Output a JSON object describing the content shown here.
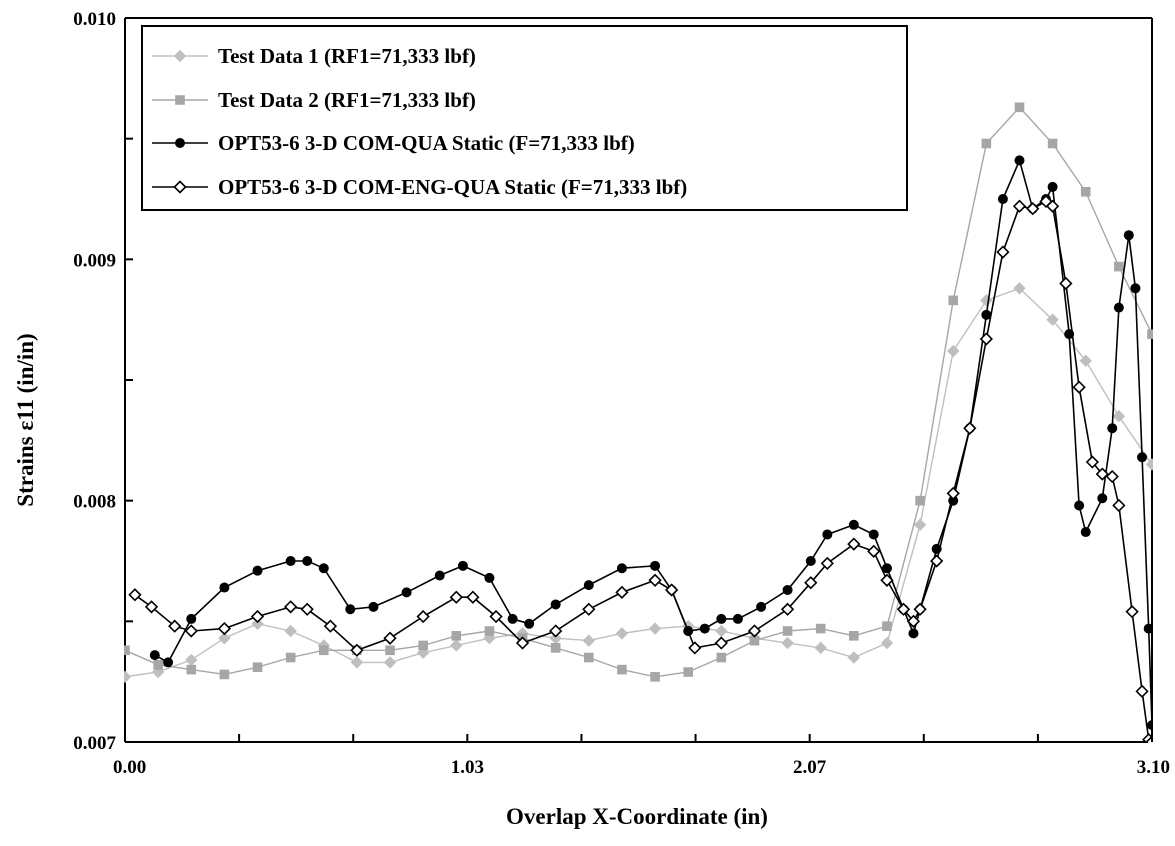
{
  "chart_data": {
    "type": "line",
    "title": "",
    "xlabel": "Overlap X-Coordinate (in)",
    "ylabel": "Strains  ε11 (in/in)",
    "xlim": [
      0.0,
      3.1
    ],
    "ylim": [
      0.007,
      0.01
    ],
    "x_tick_labels": [
      "0.00",
      "1.03",
      "2.07",
      "3.10"
    ],
    "x_tick_values": [
      0.0,
      1.0333,
      2.0667,
      3.1
    ],
    "x_minor_tick_values": [
      0.3444,
      0.6889,
      1.3778,
      1.7222,
      2.4111,
      2.7556
    ],
    "y_tick_labels": [
      "0.007",
      "0.008",
      "0.009",
      "0.010"
    ],
    "y_tick_values": [
      0.007,
      0.008,
      0.009,
      0.01
    ],
    "y_minor_tick_values": [
      0.0075,
      0.0085,
      0.0095
    ],
    "grid": false,
    "legend_position": "top-left",
    "series": [
      {
        "name": "Test Data 1 (RF1=71,333 lbf)",
        "color": "#bfbfbf",
        "marker": "diamond-filled",
        "x": [
          0.0,
          0.1,
          0.2,
          0.3,
          0.4,
          0.5,
          0.6,
          0.7,
          0.8,
          0.9,
          1.0,
          1.1,
          1.2,
          1.3,
          1.4,
          1.5,
          1.6,
          1.7,
          1.8,
          1.9,
          2.0,
          2.1,
          2.2,
          2.3,
          2.4,
          2.5,
          2.6,
          2.7,
          2.8,
          2.9,
          3.0,
          3.1
        ],
        "y": [
          0.00727,
          0.00729,
          0.00734,
          0.00743,
          0.00749,
          0.00746,
          0.0074,
          0.00733,
          0.00733,
          0.00737,
          0.0074,
          0.00743,
          0.00745,
          0.00743,
          0.00742,
          0.00745,
          0.00747,
          0.00748,
          0.00746,
          0.00743,
          0.00741,
          0.00739,
          0.00735,
          0.00741,
          0.0079,
          0.00862,
          0.00883,
          0.00888,
          0.00875,
          0.00858,
          0.00835,
          0.00815
        ]
      },
      {
        "name": "Test Data 2 (RF1=71,333 lbf)",
        "color": "#a6a6a6",
        "marker": "square-filled",
        "x": [
          0.0,
          0.1,
          0.2,
          0.3,
          0.4,
          0.5,
          0.6,
          0.7,
          0.8,
          0.9,
          1.0,
          1.1,
          1.2,
          1.3,
          1.4,
          1.5,
          1.6,
          1.7,
          1.8,
          1.9,
          2.0,
          2.1,
          2.2,
          2.3,
          2.4,
          2.5,
          2.6,
          2.7,
          2.8,
          2.9,
          3.0,
          3.1
        ],
        "y": [
          0.00738,
          0.00732,
          0.0073,
          0.00728,
          0.00731,
          0.00735,
          0.00738,
          0.00738,
          0.00738,
          0.0074,
          0.00744,
          0.00746,
          0.00743,
          0.00739,
          0.00735,
          0.0073,
          0.00727,
          0.00729,
          0.00735,
          0.00742,
          0.00746,
          0.00747,
          0.00744,
          0.00748,
          0.008,
          0.00883,
          0.00948,
          0.00963,
          0.00948,
          0.00928,
          0.00897,
          0.00869
        ]
      },
      {
        "name": "OPT53-6 3-D COM-QUA Static (F=71,333 lbf)",
        "color": "#000000",
        "marker": "circle-filled",
        "x": [
          0.09,
          0.13,
          0.2,
          0.3,
          0.4,
          0.5,
          0.55,
          0.6,
          0.68,
          0.75,
          0.85,
          0.95,
          1.02,
          1.1,
          1.17,
          1.22,
          1.3,
          1.4,
          1.5,
          1.6,
          1.65,
          1.7,
          1.75,
          1.8,
          1.85,
          1.92,
          2.0,
          2.07,
          2.12,
          2.2,
          2.26,
          2.3,
          2.35,
          2.38,
          2.4,
          2.45,
          2.5,
          2.55,
          2.6,
          2.65,
          2.7,
          2.74,
          2.78,
          2.8,
          2.85,
          2.88,
          2.9,
          2.95,
          2.98,
          3.0,
          3.03,
          3.05,
          3.07,
          3.09,
          3.1
        ],
        "y": [
          0.00736,
          0.00733,
          0.00751,
          0.00764,
          0.00771,
          0.00775,
          0.00775,
          0.00772,
          0.00755,
          0.00756,
          0.00762,
          0.00769,
          0.00773,
          0.00768,
          0.00751,
          0.00749,
          0.00757,
          0.00765,
          0.00772,
          0.00773,
          0.00763,
          0.00746,
          0.00747,
          0.00751,
          0.00751,
          0.00756,
          0.00763,
          0.00775,
          0.00786,
          0.0079,
          0.00786,
          0.00772,
          0.00755,
          0.00745,
          0.00755,
          0.0078,
          0.008,
          0.0083,
          0.00877,
          0.00925,
          0.00941,
          0.00921,
          0.00925,
          0.0093,
          0.00869,
          0.00798,
          0.00787,
          0.00801,
          0.0083,
          0.0088,
          0.0091,
          0.00888,
          0.00818,
          0.00747,
          0.00707
        ]
      },
      {
        "name": "OPT53-6 3-D COM-ENG-QUA Static (F=71,333 lbf)",
        "color": "#000000",
        "marker": "diamond-open",
        "x": [
          0.03,
          0.08,
          0.15,
          0.2,
          0.3,
          0.4,
          0.5,
          0.55,
          0.62,
          0.7,
          0.8,
          0.9,
          1.0,
          1.05,
          1.12,
          1.2,
          1.3,
          1.4,
          1.5,
          1.6,
          1.65,
          1.72,
          1.8,
          1.9,
          2.0,
          2.07,
          2.12,
          2.2,
          2.26,
          2.3,
          2.35,
          2.38,
          2.4,
          2.45,
          2.5,
          2.55,
          2.6,
          2.65,
          2.7,
          2.74,
          2.78,
          2.8,
          2.84,
          2.88,
          2.92,
          2.95,
          2.98,
          3.0,
          3.04,
          3.07,
          3.09,
          3.1
        ],
        "y": [
          0.00761,
          0.00756,
          0.00748,
          0.00746,
          0.00747,
          0.00752,
          0.00756,
          0.00755,
          0.00748,
          0.00738,
          0.00743,
          0.00752,
          0.0076,
          0.0076,
          0.00752,
          0.00741,
          0.00746,
          0.00755,
          0.00762,
          0.00767,
          0.00763,
          0.00739,
          0.00741,
          0.00746,
          0.00755,
          0.00766,
          0.00774,
          0.00782,
          0.00779,
          0.00767,
          0.00755,
          0.0075,
          0.00755,
          0.00775,
          0.00803,
          0.0083,
          0.00867,
          0.00903,
          0.00922,
          0.00921,
          0.00924,
          0.00922,
          0.0089,
          0.00847,
          0.00816,
          0.00811,
          0.0081,
          0.00798,
          0.00754,
          0.00721,
          0.00701,
          0.007
        ]
      }
    ]
  }
}
